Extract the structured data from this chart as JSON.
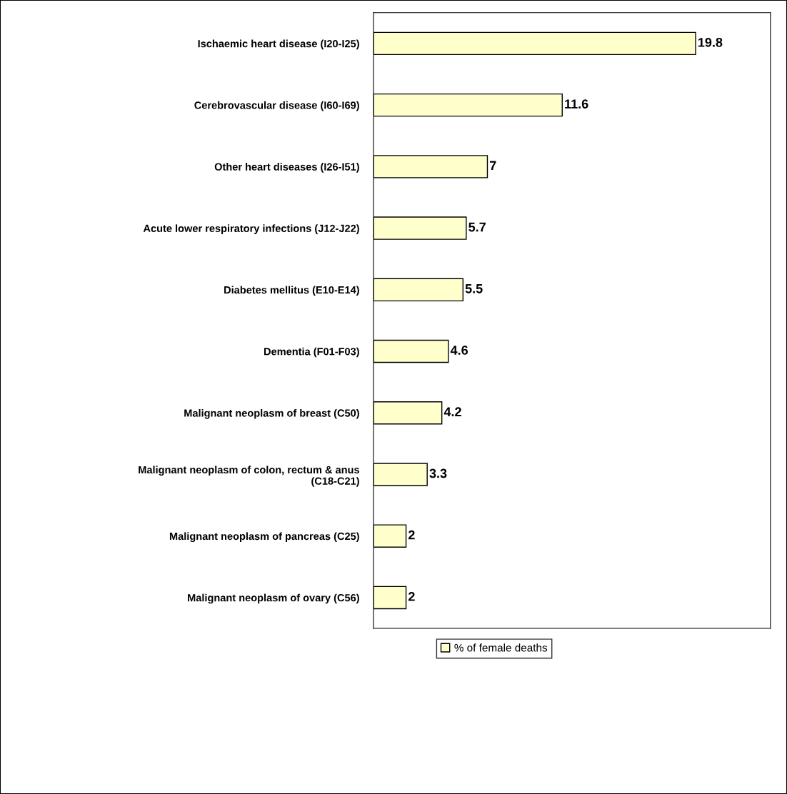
{
  "chart_data": {
    "type": "bar",
    "orientation": "horizontal",
    "categories": [
      "Ischaemic heart disease (I20-I25)",
      "Cerebrovascular disease (I60-I69)",
      "Other heart diseases (I26-I51)",
      "Acute lower respiratory infections (J12-J22)",
      "Diabetes mellitus (E10-E14)",
      "Dementia (F01-F03)",
      "Malignant neoplasm of breast (C50)",
      "Malignant neoplasm of colon, rectum & anus\n(C18-C21)",
      "Malignant neoplasm of pancreas (C25)",
      "Malignant neoplasm of ovary (C56)"
    ],
    "series": [
      {
        "name": "% of female deaths",
        "color": "#ffffcc",
        "values": [
          19.8,
          11.6,
          7,
          5.7,
          5.5,
          4.6,
          4.2,
          3.3,
          2,
          2
        ]
      }
    ],
    "xlim": [
      0,
      24.4
    ],
    "tick_labels": "y",
    "data_labels": true,
    "legend": "bottom",
    "grid": false
  }
}
